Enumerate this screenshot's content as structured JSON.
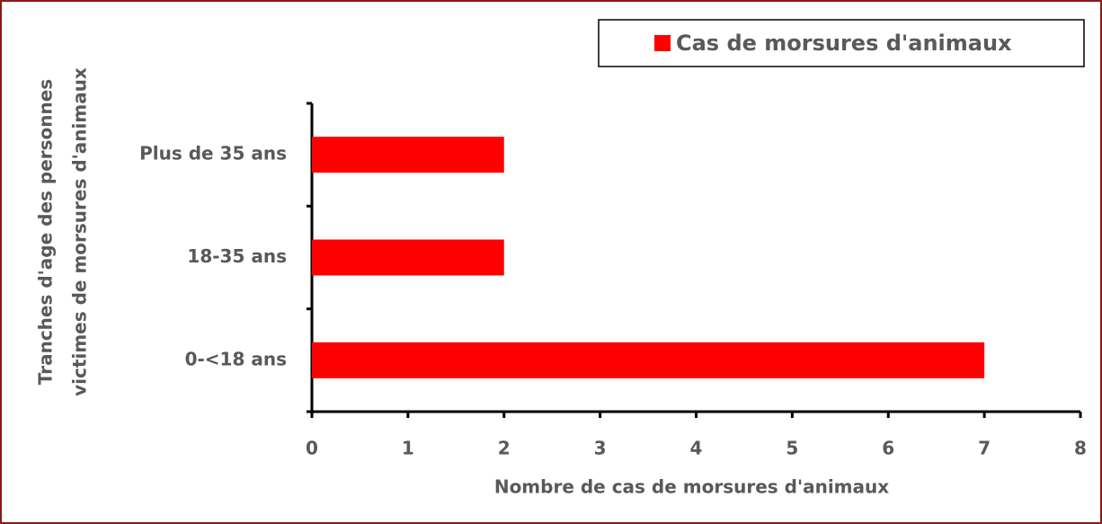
{
  "chart_data": {
    "type": "bar",
    "orientation": "horizontal",
    "categories": [
      "0-<18 ans",
      "18-35 ans",
      "Plus de 35 ans"
    ],
    "series": [
      {
        "name": "Cas de morsures d'animaux",
        "color": "#ff0000",
        "values": [
          7,
          2,
          2
        ]
      }
    ],
    "xlim": [
      0,
      8
    ],
    "xticks": [
      0,
      1,
      2,
      3,
      4,
      5,
      6,
      7,
      8
    ],
    "x_label": "Nombre de cas de morsures d'animaux",
    "y_label": [
      "Tranches d'age des personnes",
      "victimes de morsures d'animaux"
    ],
    "legend": "top-right",
    "grid": false
  }
}
